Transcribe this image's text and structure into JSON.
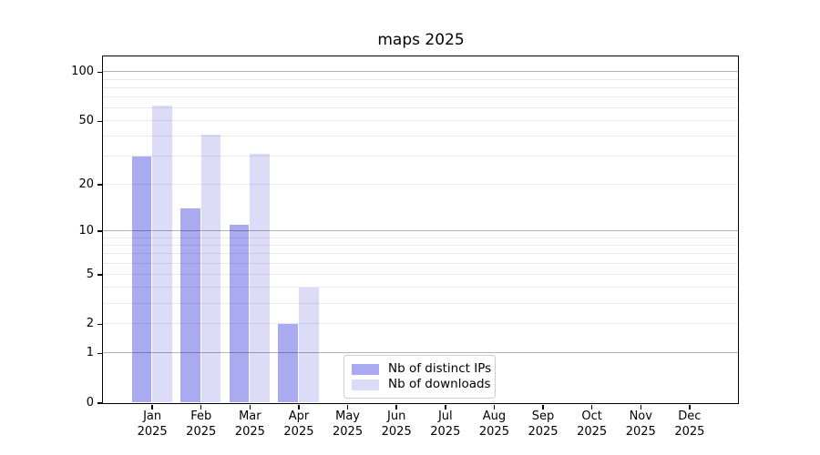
{
  "chart_data": {
    "type": "bar",
    "title": "maps 2025",
    "categories": [
      "Jan",
      "Feb",
      "Mar",
      "Apr",
      "May",
      "Jun",
      "Jul",
      "Aug",
      "Sep",
      "Oct",
      "Nov",
      "Dec"
    ],
    "x_year_label": "2025",
    "series": [
      {
        "name": "Nb of distinct IPs",
        "color": "#aaaaf0",
        "values": [
          30,
          14,
          11,
          2,
          0,
          0,
          0,
          0,
          0,
          0,
          0,
          0
        ]
      },
      {
        "name": "Nb of downloads",
        "color": "#dcdcf8",
        "values": [
          62,
          41,
          31,
          4,
          0,
          0,
          0,
          0,
          0,
          0,
          0,
          0
        ]
      }
    ],
    "yscale": "log1p",
    "ylim": [
      0,
      125
    ],
    "ytick_labels": [
      0,
      1,
      2,
      5,
      10,
      20,
      50,
      100
    ],
    "major_gridlines": [
      1,
      10,
      100
    ],
    "minor_gridlines": [
      2,
      3,
      4,
      5,
      6,
      7,
      8,
      9,
      20,
      30,
      40,
      50,
      60,
      70,
      80,
      90
    ],
    "grid": "horizontal",
    "legend_position": "inside-bottom-center",
    "colors": {
      "axis": "#000000",
      "major_grid": "#b0b0b0",
      "minor_grid": "#e8e8e8"
    }
  }
}
